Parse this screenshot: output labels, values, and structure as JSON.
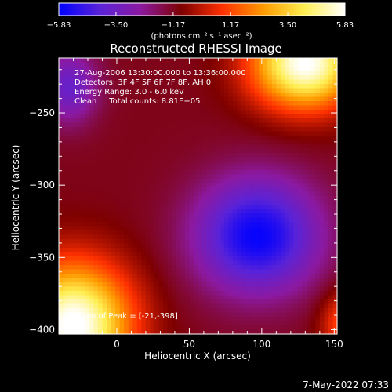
{
  "chart_data": {
    "type": "heatmap",
    "title": "Reconstructed RHESSI Image",
    "xlabel": "Heliocentric X (arcsec)",
    "ylabel": "Heliocentric Y (arcsec)",
    "xlim": [
      -40,
      152
    ],
    "ylim": [
      -403,
      -212
    ],
    "x_ticks": [
      "0",
      "50",
      "100",
      "150"
    ],
    "x_tick_values": [
      0,
      50,
      100,
      150
    ],
    "y_ticks": [
      "-250",
      "-300",
      "-350",
      "-400"
    ],
    "y_tick_values": [
      -250,
      -300,
      -350,
      -400
    ],
    "colorbar": {
      "ticks": [
        "-5.83",
        "-3.50",
        "-1.17",
        "1.17",
        "3.50",
        "5.83"
      ],
      "tick_values": [
        -5.83,
        -3.5,
        -1.17,
        1.17,
        3.5,
        5.83
      ],
      "range": [
        -5.83,
        5.83
      ],
      "unit_label": "(photons cm⁻² s⁻¹ asec⁻²)",
      "colormap": [
        "#0000ff",
        "#5a23d8",
        "#8c19a0",
        "#7d0000",
        "#ff3000",
        "#ff9a00",
        "#ffee50",
        "#ffffff"
      ]
    },
    "annotations": [
      "27-Aug-2006 13:30:00.000 to 13:36:00.000",
      "Detectors: 3F 4F 5F 6F 7F 8F, AH 0",
      "Energy Range: 3.0 - 6.0 keV",
      "Clean     Total counts: 8.81E+05"
    ],
    "peak_label": "Location of Peak = [-21,-398]",
    "features": [
      {
        "kind": "max",
        "x": 130,
        "y": -216,
        "sx": 26,
        "sy": 22,
        "amp": 7.0
      },
      {
        "kind": "max",
        "x": -30,
        "y": -397,
        "sx": 28,
        "sy": 30,
        "amp": 7.2
      },
      {
        "kind": "max",
        "x": 158,
        "y": -396,
        "sx": 12,
        "sy": 16,
        "amp": 2.5
      },
      {
        "kind": "min",
        "x": 97,
        "y": -335,
        "sx": 30,
        "sy": 28,
        "amp": -4.6
      },
      {
        "kind": "min",
        "x": -33,
        "y": -232,
        "sx": 14,
        "sy": 18,
        "amp": -2.6
      }
    ],
    "base_level": -1.1
  },
  "footer": {
    "date": "7-May-2022 07:33"
  }
}
